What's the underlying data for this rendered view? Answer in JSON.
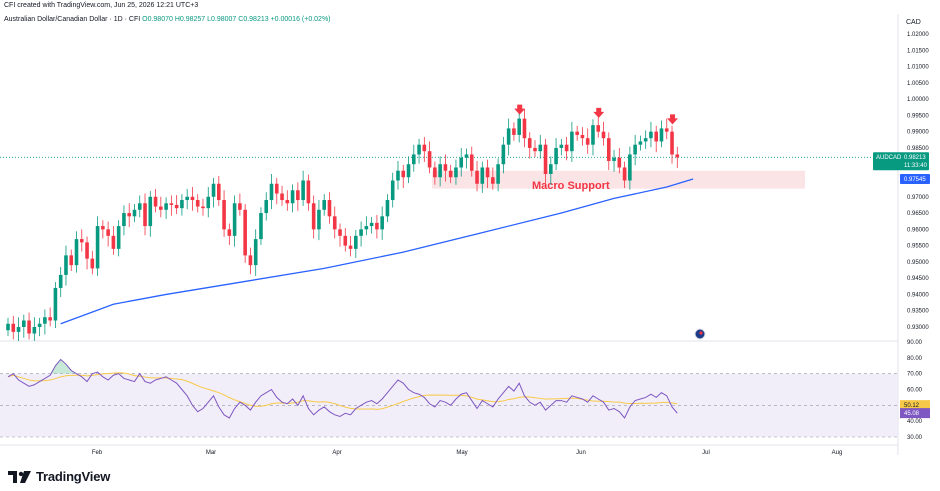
{
  "credit": "CFI created with TradingView.com, Jun 25, 2026 12:21 UTC+3",
  "legend": {
    "symbol": "Australian Dollar/Canadian Dollar · 1D · CFI",
    "ohlc": "O0.98070 H0.98257 L0.98007 C0.98213 +0.00016 (+0.02%)"
  },
  "currency": "CAD",
  "colors": {
    "up": "#089981",
    "down": "#f23645",
    "ma": "#2962ff",
    "rsi": "#7e57c2",
    "rsi_ma": "#f7c948",
    "support_zone": "#fbe3e5",
    "arrow": "#f23645"
  },
  "badges": {
    "symbol": "AUDCAD",
    "price": "0.98213",
    "countdown": "11:33:40",
    "ma_price": "0.97545",
    "rsi_ma_value": "50.12",
    "rsi_value": "45.08"
  },
  "annotation": "Macro Support",
  "logo": "TradingView",
  "chart_data": [
    {
      "type": "candlestick",
      "ylim": [
        0.925,
        1.025
      ],
      "y_ticks": [
        "1.02000",
        "1.01500",
        "1.01000",
        "1.00500",
        "1.00000",
        "0.99500",
        "0.99000",
        "0.98500",
        "0.98000",
        "0.97500",
        "0.97000",
        "0.96500",
        "0.96000",
        "0.95500",
        "0.95000",
        "0.94500",
        "0.94000",
        "0.93500",
        "0.93000"
      ],
      "x_ticks": [
        "Feb",
        "Mar",
        "Apr",
        "May",
        "Jun",
        "Jul",
        "Aug"
      ],
      "last_price": 0.98213,
      "support_zone": [
        0.9725,
        0.978
      ],
      "arrows_at_highs": [
        0.994,
        0.993,
        0.991
      ],
      "closes": [
        0.931,
        0.9285,
        0.93,
        0.932,
        0.928,
        0.93,
        0.931,
        0.933,
        0.932,
        0.942,
        0.946,
        0.952,
        0.949,
        0.957,
        0.956,
        0.951,
        0.948,
        0.961,
        0.96,
        0.958,
        0.954,
        0.961,
        0.965,
        0.964,
        0.966,
        0.968,
        0.961,
        0.97,
        0.967,
        0.966,
        0.968,
        0.9675,
        0.9665,
        0.969,
        0.97,
        0.969,
        0.967,
        0.9665,
        0.97,
        0.974,
        0.969,
        0.96,
        0.958,
        0.968,
        0.966,
        0.952,
        0.949,
        0.957,
        0.965,
        0.969,
        0.974,
        0.971,
        0.969,
        0.968,
        0.972,
        0.969,
        0.975,
        0.968,
        0.96,
        0.966,
        0.969,
        0.964,
        0.96,
        0.958,
        0.955,
        0.954,
        0.958,
        0.96,
        0.961,
        0.962,
        0.96,
        0.964,
        0.969,
        0.975,
        0.978,
        0.976,
        0.98,
        0.983,
        0.986,
        0.984,
        0.979,
        0.976,
        0.98,
        0.978,
        0.976,
        0.979,
        0.982,
        0.983,
        0.978,
        0.974,
        0.979,
        0.976,
        0.974,
        0.98,
        0.986,
        0.991,
        0.989,
        0.994,
        0.988,
        0.985,
        0.984,
        0.986,
        0.977,
        0.98,
        0.985,
        0.986,
        0.984,
        0.99,
        0.989,
        0.988,
        0.986,
        0.992,
        0.99,
        0.988,
        0.981,
        0.982,
        0.979,
        0.975,
        0.983,
        0.986,
        0.987,
        0.988,
        0.99,
        0.987,
        0.991,
        0.99,
        0.983,
        0.9821
      ],
      "ma_line": [
        [
          10,
          0.931
        ],
        [
          20,
          0.937
        ],
        [
          30,
          0.94
        ],
        [
          45,
          0.944
        ],
        [
          60,
          0.948
        ],
        [
          75,
          0.953
        ],
        [
          90,
          0.959
        ],
        [
          105,
          0.965
        ],
        [
          115,
          0.9695
        ],
        [
          125,
          0.973
        ],
        [
          130,
          0.97545
        ]
      ]
    },
    {
      "type": "line",
      "name": "RSI",
      "ylim": [
        30,
        90
      ],
      "y_ticks": [
        "90.00",
        "80.00",
        "70.00",
        "60.00",
        "50.00",
        "40.00",
        "30.00"
      ],
      "overbought": 70,
      "oversold": 30,
      "mid": 50,
      "rsi": [
        68,
        70,
        66,
        64,
        62,
        63,
        65,
        67,
        69,
        75,
        79,
        76,
        72,
        70,
        68,
        65,
        70,
        71,
        68,
        66,
        69,
        70,
        67,
        66,
        65,
        70,
        65,
        64,
        66,
        67,
        68,
        66,
        64,
        60,
        56,
        50,
        46,
        48,
        52,
        56,
        49,
        44,
        42,
        48,
        52,
        50,
        47,
        52,
        56,
        58,
        60,
        55,
        52,
        51,
        54,
        50,
        56,
        48,
        44,
        47,
        49,
        46,
        44,
        43,
        45,
        44,
        48,
        50,
        52,
        53,
        51,
        54,
        58,
        62,
        66,
        64,
        60,
        58,
        57,
        55,
        51,
        49,
        53,
        52,
        50,
        54,
        57,
        58,
        53,
        48,
        53,
        51,
        49,
        54,
        58,
        62,
        59,
        64,
        56,
        52,
        50,
        52,
        47,
        50,
        53,
        53,
        52,
        56,
        55,
        54,
        52,
        56,
        54,
        52,
        47,
        48,
        46,
        42,
        49,
        53,
        54,
        55,
        57,
        55,
        58,
        56,
        49,
        45.08
      ],
      "rsi_ma_end": 50.12
    }
  ]
}
